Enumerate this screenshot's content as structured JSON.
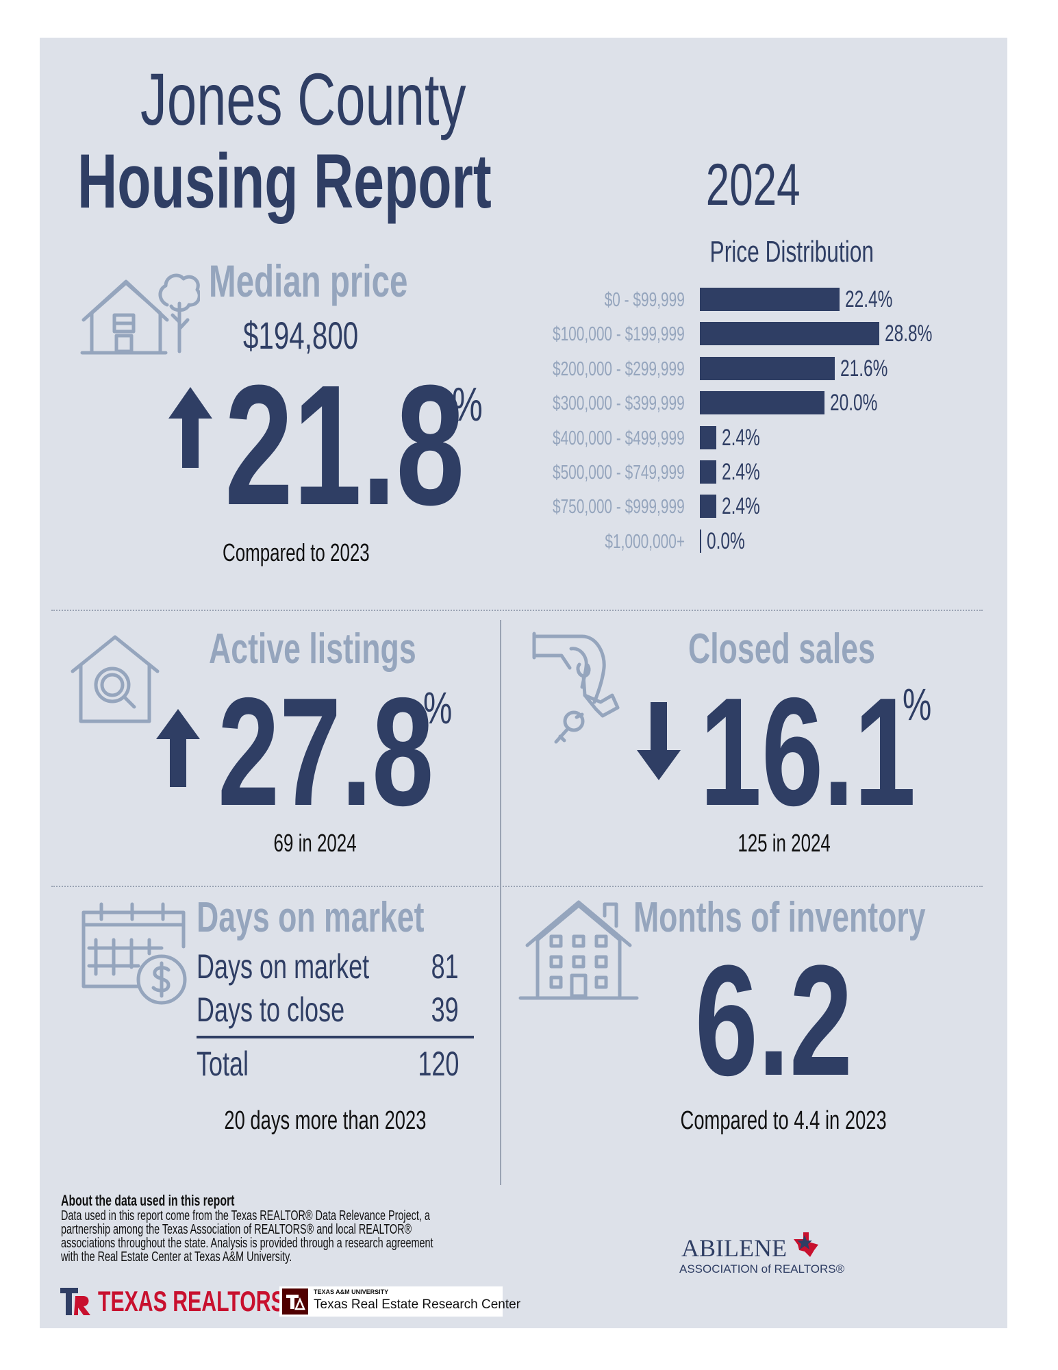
{
  "report": {
    "title_line1": "Jones County",
    "title_line2": "Housing Report",
    "year": "2024"
  },
  "median_price": {
    "label": "Median price",
    "value": "$194,800",
    "change": "21.8",
    "percent_sign": "%",
    "direction": "up",
    "comparison": "Compared to 2023"
  },
  "price_distribution": {
    "title": "Price Distribution",
    "rows": [
      {
        "range": "$0 - $99,999",
        "value_text": "22.4%"
      },
      {
        "range": "$100,000 - $199,999",
        "value_text": "28.8%"
      },
      {
        "range": "$200,000 - $299,999",
        "value_text": "21.6%"
      },
      {
        "range": "$300,000 - $399,999",
        "value_text": "20.0%"
      },
      {
        "range": "$400,000 - $499,999",
        "value_text": "2.4%"
      },
      {
        "range": "$500,000 - $749,999",
        "value_text": "2.4%"
      },
      {
        "range": "$750,000 - $999,999",
        "value_text": "2.4%"
      },
      {
        "range": "$1,000,000+",
        "value_text": "0.0%"
      }
    ]
  },
  "chart_data": {
    "type": "bar",
    "orientation": "horizontal",
    "title": "Price Distribution",
    "categories": [
      "$0 - $99,999",
      "$100,000 - $199,999",
      "$200,000 - $299,999",
      "$300,000 - $399,999",
      "$400,000 - $499,999",
      "$500,000 - $749,999",
      "$750,000 - $999,999",
      "$1,000,000+"
    ],
    "values": [
      22.4,
      28.8,
      21.6,
      20.0,
      2.4,
      2.4,
      2.4,
      0.0
    ],
    "unit": "%",
    "xlim": [
      0,
      28.8
    ]
  },
  "active_listings": {
    "label": "Active listings",
    "change": "27.8",
    "percent_sign": "%",
    "direction": "up",
    "detail": "69 in 2024"
  },
  "closed_sales": {
    "label": "Closed sales",
    "change": "16.1",
    "percent_sign": "%",
    "direction": "down",
    "detail": "125 in 2024"
  },
  "days_on_market": {
    "label": "Days on market",
    "rows": [
      {
        "name": "Days on market",
        "value": "81"
      },
      {
        "name": "Days to close",
        "value": "39"
      }
    ],
    "total_label": "Total",
    "total_value": "120",
    "comparison": "20 days more than 2023"
  },
  "months_inventory": {
    "label": "Months of inventory",
    "value": "6.2",
    "comparison": "Compared to 4.4 in 2023"
  },
  "footer": {
    "about_title": "About the data used in this report",
    "about_lines": [
      "Data used in this report come from the Texas REALTOR® Data Relevance Project, a",
      "partnership among the Texas Association of REALTORS® and local REALTOR®",
      "associations throughout the state. Analysis is provided through a research agreement",
      "with the Real Estate Center at Texas A&M University."
    ],
    "texas_realtors_logo": "TEXAS REALTORS",
    "tamu_small": "TEXAS A&M UNIVERSITY",
    "tamu_center": "Texas Real Estate Research Center",
    "abilene_line1": "ABILENE",
    "abilene_line2": "ASSOCIATION of REALTORS®"
  },
  "colors": {
    "navy": "#2f3e64",
    "light_blue": "#95a5bd",
    "panel_bg": "#dde1e9",
    "red": "#c8102e"
  }
}
